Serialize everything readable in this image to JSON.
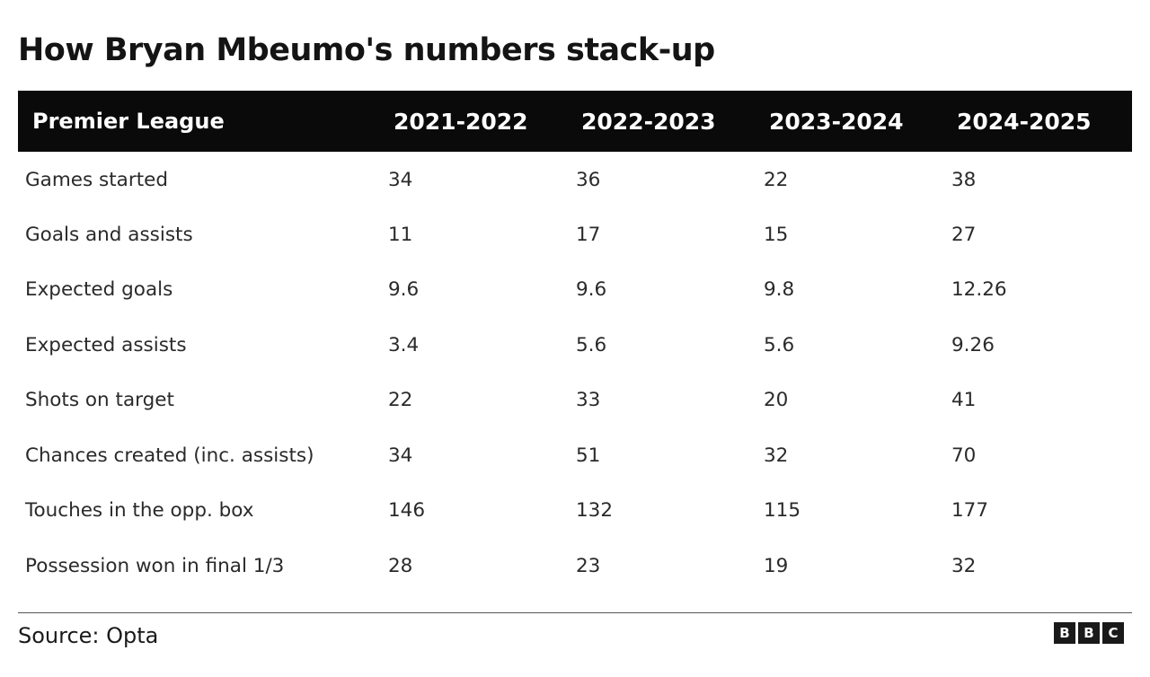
{
  "title": "How Bryan Mbeumo's numbers stack-up",
  "source": "Source: Opta",
  "logo": {
    "letters": [
      "B",
      "B",
      "C"
    ]
  },
  "colors": {
    "header_bg": "#0a0a0a",
    "header_text": "#ffffff",
    "body_text": "#2a2a2a",
    "title_text": "#141414",
    "rule": "#555555"
  },
  "chart_data": {
    "type": "table",
    "title": "How Bryan Mbeumo's numbers stack-up",
    "columns": [
      "Premier League",
      "2021-2022",
      "2022-2023",
      "2023-2024",
      "2024-2025"
    ],
    "rows": [
      [
        "Games started",
        "34",
        "36",
        "22",
        "38"
      ],
      [
        "Goals and assists",
        "11",
        "17",
        "15",
        "27"
      ],
      [
        "Expected goals",
        "9.6",
        "9.6",
        "9.8",
        "12.26"
      ],
      [
        "Expected assists",
        "3.4",
        "5.6",
        "5.6",
        "9.26"
      ],
      [
        "Shots on target",
        "22",
        "33",
        "20",
        "41"
      ],
      [
        "Chances created (inc. assists)",
        "34",
        "51",
        "32",
        "70"
      ],
      [
        "Touches in the opp. box",
        "146",
        "132",
        "115",
        "177"
      ],
      [
        "Possession won in final 1/3",
        "28",
        "23",
        "19",
        "32"
      ]
    ],
    "source": "Source: Opta"
  }
}
